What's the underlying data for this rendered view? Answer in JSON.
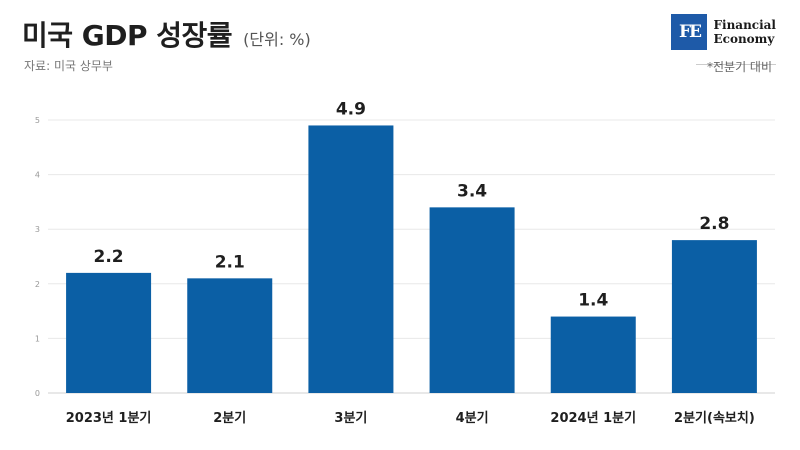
{
  "header": {
    "title": "미국 GDP 성장률",
    "unit": "(단위: %)",
    "source": "자료: 미국 상무부",
    "note": "*전분기 대비"
  },
  "logo": {
    "mark": "FE",
    "line1": "Financial",
    "line2": "Economy"
  },
  "chart_data": {
    "type": "bar",
    "categories": [
      "2023년 1분기",
      "2분기",
      "3분기",
      "4분기",
      "2024년 1분기",
      "2분기(속보치)"
    ],
    "values": [
      2.2,
      2.1,
      4.9,
      3.4,
      1.4,
      2.8
    ],
    "data_labels": [
      "2.2",
      "2.1",
      "4.9",
      "3.4",
      "1.4",
      "2.8"
    ],
    "yticks": [
      "0",
      "1",
      "2",
      "3",
      "4",
      "5"
    ],
    "ylim": [
      0,
      5
    ],
    "grid": true,
    "bar_color": "#0b5fa5"
  }
}
